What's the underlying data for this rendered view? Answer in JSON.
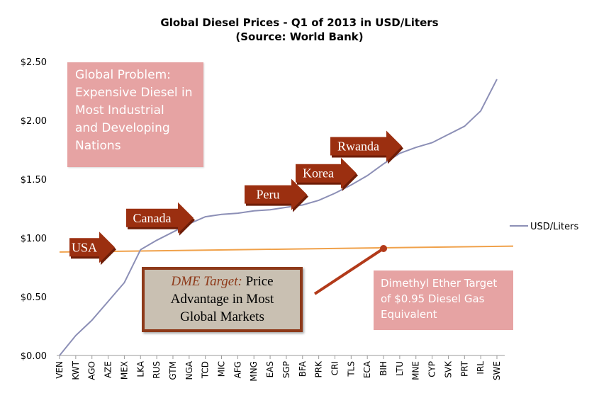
{
  "chart_data": {
    "type": "line",
    "title": "Global Diesel Prices - Q1 of 2013 in USD/Liters",
    "subtitle": "(Source: World Bank)",
    "ylim": [
      0,
      2.5
    ],
    "y_ticks": [
      "$0.00",
      "$0.50",
      "$1.00",
      "$1.50",
      "$2.00",
      "$2.50"
    ],
    "y_tick_values": [
      0,
      0.5,
      1.0,
      1.5,
      2.0,
      2.5
    ],
    "grid": false,
    "legend_position": "right",
    "categories": [
      "VEN",
      "KWT",
      "AGO",
      "AZE",
      "MEX",
      "LKA",
      "RUS",
      "GTM",
      "NGA",
      "TCD",
      "MIC",
      "AFG",
      "MNG",
      "EAS",
      "SGP",
      "BFA",
      "PRK",
      "CRI",
      "TLS",
      "ECA",
      "BIH",
      "LTU",
      "MNE",
      "CYP",
      "SVK",
      "PRT",
      "IRL",
      "SWE"
    ],
    "series": [
      {
        "name": "USD/Liters",
        "color": "#8c8fb6",
        "values": [
          0.0,
          0.17,
          0.3,
          0.46,
          0.62,
          0.9,
          0.98,
          1.05,
          1.12,
          1.18,
          1.2,
          1.21,
          1.23,
          1.24,
          1.26,
          1.28,
          1.32,
          1.38,
          1.45,
          1.53,
          1.63,
          1.72,
          1.77,
          1.81,
          1.88,
          1.95,
          2.08,
          2.35
        ]
      }
    ],
    "target_line": {
      "name": "DME target",
      "color": "#f0a14a",
      "start": 0.88,
      "end": 0.93
    },
    "target_marker": {
      "category": "BIH",
      "value": 0.91,
      "color": "#b23a1a"
    },
    "annotations": [
      {
        "label": "USA",
        "category": "MEX",
        "value": 0.92
      },
      {
        "label": "Canada",
        "category": "RUS",
        "value": 1.17
      },
      {
        "label": "Peru",
        "category": "BFA",
        "value": 1.37
      },
      {
        "label": "Korea",
        "category": "ECA",
        "value": 1.55
      },
      {
        "label": "Rwanda",
        "category": "BIH",
        "value": 1.78
      }
    ]
  },
  "boxes": {
    "problem": [
      "Global Problem:",
      "Expensive Diesel in",
      "Most Industrial",
      "and Developing",
      "Nations"
    ],
    "dme_italic": "DME Target:",
    "dme_rest": "Price",
    "dme_lines": [
      "Advantage in Most",
      "Global Markets"
    ],
    "ether": [
      "Dimethyl Ether Target",
      "of $0.95 Diesel Gas",
      "Equivalent"
    ]
  },
  "colors": {
    "arrow_fill": "#9b2f10",
    "arrow_shade": "#6e1d07",
    "pink_box": "#e6a3a3",
    "dme_box": "#c9c0b2",
    "dme_border": "#8e3a1a",
    "pointer": "#b23a1a"
  }
}
